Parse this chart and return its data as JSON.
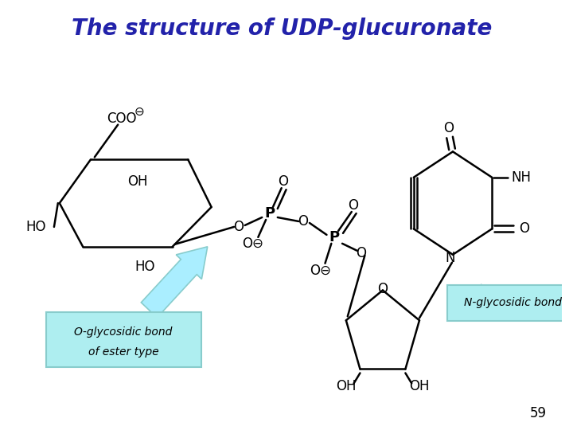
{
  "title": "The structure of UDP-glucuronate",
  "title_color": "#2222AA",
  "title_fontsize": 20,
  "bg_color": "#FFFFFF",
  "label_left_text1": "O-glycosidic bond",
  "label_left_text2": "of ester type",
  "label_right_text": "N-glycosidic bond",
  "label_bg": "#AEEEF0",
  "label_edge": "#88CCCC",
  "page_number": "59",
  "arrow_color": "#AAEEFF"
}
